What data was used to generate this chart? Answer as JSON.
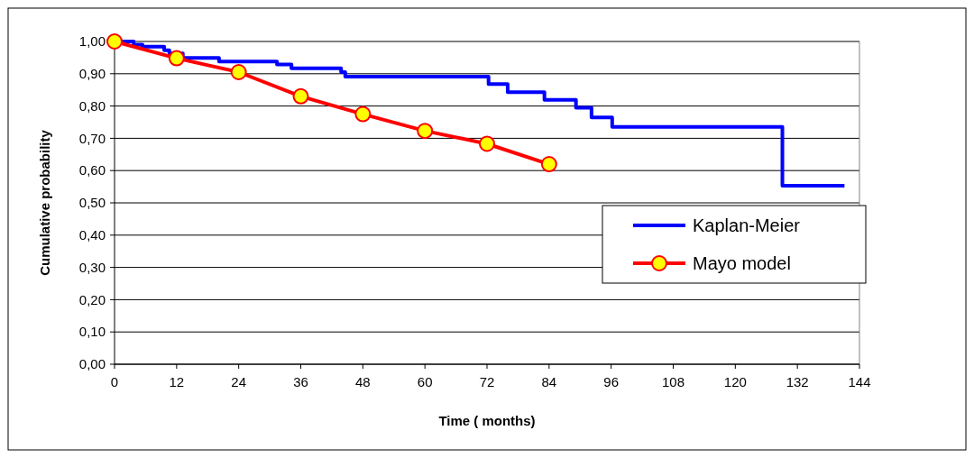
{
  "chart_data": {
    "type": "line",
    "xlabel": "Time ( months)",
    "ylabel": "Cumulative probability",
    "xlim": [
      0,
      144
    ],
    "xticks": [
      0,
      12,
      24,
      36,
      48,
      60,
      72,
      84,
      96,
      108,
      120,
      132,
      144
    ],
    "ylim": [
      0,
      1
    ],
    "yticks": [
      {
        "value": 0,
        "label": "0,00"
      },
      {
        "value": 0.1,
        "label": "0,10"
      },
      {
        "value": 0.2,
        "label": "0,20"
      },
      {
        "value": 0.3,
        "label": "0,30"
      },
      {
        "value": 0.4,
        "label": "0,40"
      },
      {
        "value": 0.5,
        "label": "0,50"
      },
      {
        "value": 0.6,
        "label": "0,60"
      },
      {
        "value": 0.7,
        "label": "0,70"
      },
      {
        "value": 0.8,
        "label": "0,80"
      },
      {
        "value": 0.9,
        "label": "0,90"
      },
      {
        "value": 1,
        "label": "1,00"
      }
    ],
    "grid": "y",
    "legend": "right",
    "series": [
      {
        "name": "Kaplan-Meier",
        "type": "step",
        "color": "#0000ff",
        "marker": "none",
        "x": [
          0,
          3.7,
          5.4,
          9.6,
          10.6,
          13.2,
          20.2,
          31.4,
          34.2,
          43.8,
          44.6,
          72.3,
          76,
          83.1,
          89.2,
          92.2,
          96.2,
          129.1,
          141.1
        ],
        "values": [
          1,
          0.99,
          0.984,
          0.973,
          0.963,
          0.949,
          0.938,
          0.929,
          0.917,
          0.905,
          0.891,
          0.868,
          0.843,
          0.819,
          0.795,
          0.765,
          0.735,
          0.553,
          0.553
        ]
      },
      {
        "name": "Mayo model",
        "color": "#ff0000",
        "marker": "circle",
        "x": [
          0,
          12,
          24,
          36,
          48,
          60,
          72,
          84
        ],
        "values": [
          1,
          0.948,
          0.905,
          0.83,
          0.775,
          0.723,
          0.683,
          0.62
        ]
      }
    ]
  }
}
